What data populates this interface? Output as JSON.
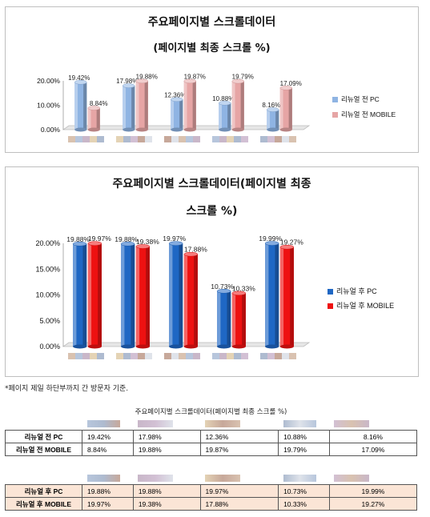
{
  "chart_data": [
    {
      "type": "bar",
      "title": "주요페이지별 스크롤데이터",
      "subtitle": "(페이지별 최종 스크롤 %)",
      "categories": [
        "",
        "",
        "",
        "",
        ""
      ],
      "ylim": [
        0,
        20
      ],
      "ytick_labels": [
        "0.00%",
        "10.00%",
        "20.00%"
      ],
      "yticks": [
        0,
        10,
        20
      ],
      "grid": false,
      "legend_position": "right",
      "series": [
        {
          "name": "리뉴얼 전 PC",
          "values": [
            19.42,
            17.98,
            12.36,
            10.88,
            8.16
          ],
          "labels": [
            "19.42%",
            "17.98%",
            "12.36%",
            "10.88%",
            "8.16%"
          ],
          "color": "#8fb4e3"
        },
        {
          "name": "리뉴얼 전 MOBILE",
          "values": [
            8.84,
            19.88,
            19.87,
            19.79,
            17.09
          ],
          "labels": [
            "8.84%",
            "19.88%",
            "19.87%",
            "19.79%",
            "17.09%"
          ],
          "color": "#e6a5a5"
        }
      ]
    },
    {
      "type": "bar",
      "title": "주요페이지별 스크롤데이터(페이지별 최종",
      "subtitle": "스크롤 %)",
      "categories": [
        "",
        "",
        "",
        "",
        ""
      ],
      "ylim": [
        0,
        20
      ],
      "ytick_labels": [
        "0.00%",
        "5.00%",
        "10.00%",
        "15.00%",
        "20.00%"
      ],
      "yticks": [
        0,
        5,
        10,
        15,
        20
      ],
      "grid": false,
      "legend_position": "right",
      "series": [
        {
          "name": "리뉴얼 후 PC",
          "values": [
            19.88,
            19.88,
            19.97,
            10.73,
            19.99
          ],
          "labels": [
            "19.88%",
            "19.88%",
            "19.97%",
            "10.73%",
            "19.99%"
          ],
          "color": "#1f67c4"
        },
        {
          "name": "리뉴얼 후 MOBILE",
          "values": [
            19.97,
            19.38,
            17.88,
            10.33,
            19.27
          ],
          "labels": [
            "19.97%",
            "19.38%",
            "17.88%",
            "10.33%",
            "19.27%"
          ],
          "color": "#ee1111"
        }
      ]
    }
  ],
  "note": "*페이지 제일 하단부까지 간 방문자 기준.",
  "table_caption": "주요페이지별 스크롤데이터(페이지별 최종 스크롤 %)",
  "table_before": {
    "rows": [
      {
        "label": "리뉴얼 전 PC",
        "cells": [
          "19.42%",
          "17.98%",
          "12.36%",
          "10.88%",
          "8.16%"
        ]
      },
      {
        "label": "리뉴얼 전 MOBILE",
        "cells": [
          "8.84%",
          "19.88%",
          "19.87%",
          "19.79%",
          "17.09%"
        ]
      }
    ]
  },
  "table_after": {
    "rows": [
      {
        "label": "리뉴얼 후 PC",
        "cells": [
          "19.88%",
          "19.88%",
          "19.97%",
          "10.73%",
          "19.99%"
        ]
      },
      {
        "label": "리뉴얼 후 MOBILE",
        "cells": [
          "19.97%",
          "19.38%",
          "17.88%",
          "10.33%",
          "19.27%"
        ]
      }
    ]
  }
}
